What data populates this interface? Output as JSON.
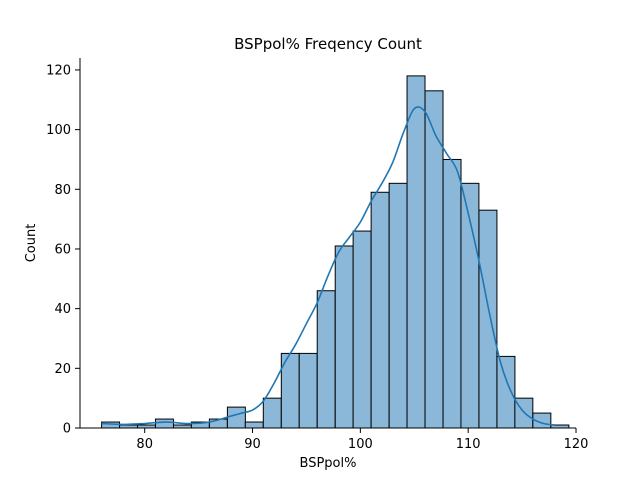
{
  "chart_data": {
    "type": "bar",
    "title": "BSPpol% Freqency Count",
    "xlabel": "BSPpol%",
    "ylabel": "Count",
    "xlim": [
      74,
      120
    ],
    "ylim": [
      0,
      124
    ],
    "xticks": [
      80,
      90,
      100,
      110,
      120
    ],
    "yticks": [
      0,
      20,
      40,
      60,
      80,
      100,
      120
    ],
    "bin_width": 1.6667,
    "bins": [
      {
        "start": 76.0,
        "count": 2
      },
      {
        "start": 77.67,
        "count": 1
      },
      {
        "start": 79.33,
        "count": 1
      },
      {
        "start": 81.0,
        "count": 3
      },
      {
        "start": 82.67,
        "count": 1
      },
      {
        "start": 84.33,
        "count": 2
      },
      {
        "start": 86.0,
        "count": 3
      },
      {
        "start": 87.67,
        "count": 7
      },
      {
        "start": 89.33,
        "count": 2
      },
      {
        "start": 91.0,
        "count": 10
      },
      {
        "start": 92.67,
        "count": 25
      },
      {
        "start": 94.33,
        "count": 25
      },
      {
        "start": 96.0,
        "count": 46
      },
      {
        "start": 97.67,
        "count": 61
      },
      {
        "start": 99.33,
        "count": 66
      },
      {
        "start": 101.0,
        "count": 79
      },
      {
        "start": 102.67,
        "count": 82
      },
      {
        "start": 104.33,
        "count": 118
      },
      {
        "start": 106.0,
        "count": 113
      },
      {
        "start": 107.67,
        "count": 90
      },
      {
        "start": 109.33,
        "count": 82
      },
      {
        "start": 111.0,
        "count": 73
      },
      {
        "start": 112.67,
        "count": 24
      },
      {
        "start": 114.33,
        "count": 10
      },
      {
        "start": 116.0,
        "count": 5
      },
      {
        "start": 117.67,
        "count": 1
      }
    ],
    "kde": {
      "x": [
        76,
        78,
        80,
        82,
        84,
        86,
        88,
        89,
        90,
        91,
        92,
        93,
        94,
        95,
        96,
        97,
        98,
        99,
        100,
        101,
        102,
        103,
        104,
        105,
        106,
        107,
        108,
        109,
        110,
        111,
        112,
        113,
        114,
        115,
        116,
        117,
        118
      ],
      "y": [
        1.5,
        1.2,
        1.5,
        2,
        1.5,
        2,
        4,
        5,
        6,
        9,
        15,
        22,
        28,
        35,
        42,
        51,
        59,
        64,
        69,
        76,
        82,
        89,
        99,
        107,
        106,
        98,
        92,
        86,
        72,
        56,
        38,
        22,
        12,
        6,
        3,
        1.5,
        1
      ]
    },
    "bar_color": "#8bb8d9",
    "line_color": "#1f77b4",
    "grid": false
  }
}
